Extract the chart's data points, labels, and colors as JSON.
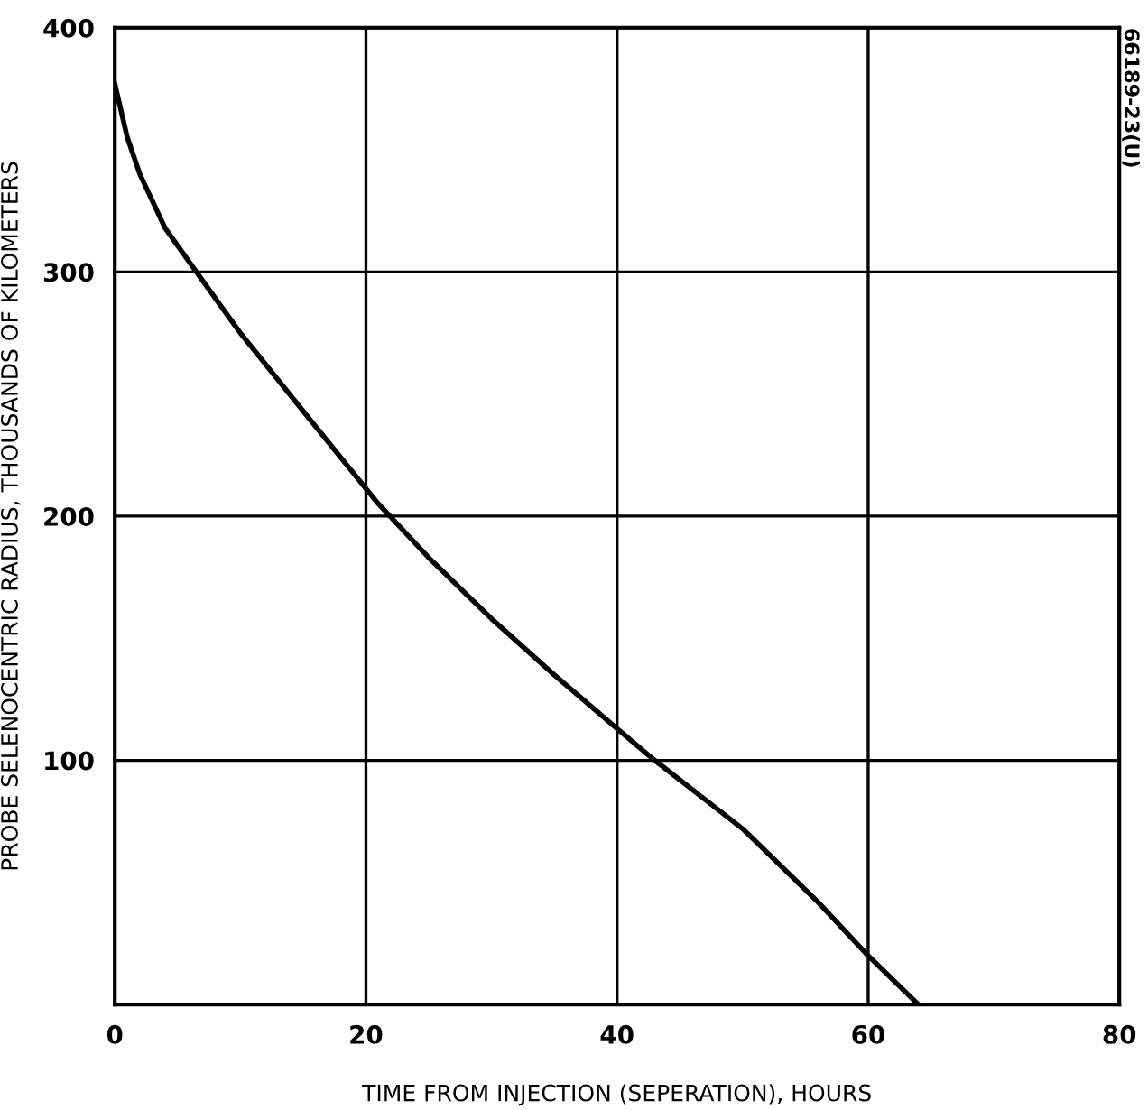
{
  "chart_data": {
    "type": "line",
    "xlabel": "TIME FROM INJECTION (SEPERATION), HOURS",
    "ylabel": "PROBE SELENOCENTRIC RADIUS, THOUSANDS OF KILOMETERS",
    "annotations": [
      "66189-23(U)"
    ],
    "x": [
      0,
      1,
      2,
      4,
      6.5,
      10,
      15,
      21,
      25,
      30,
      35,
      40,
      43,
      50,
      56,
      60,
      64
    ],
    "series": [
      {
        "color": "#000000",
        "values": [
          377,
          355,
          340,
          318,
          300,
          275,
          243,
          205,
          183,
          158,
          135,
          113,
          100,
          72,
          42,
          20,
          0
        ]
      }
    ],
    "xlim": [
      0,
      80
    ],
    "xticks": [
      0,
      20,
      40,
      60,
      80
    ],
    "ylim": [
      0,
      400
    ],
    "yticks": [
      {
        "value": 0,
        "label": null
      },
      100,
      200,
      300,
      400
    ],
    "grid": true,
    "legend": false,
    "marker": "none",
    "line_style": "solid"
  }
}
